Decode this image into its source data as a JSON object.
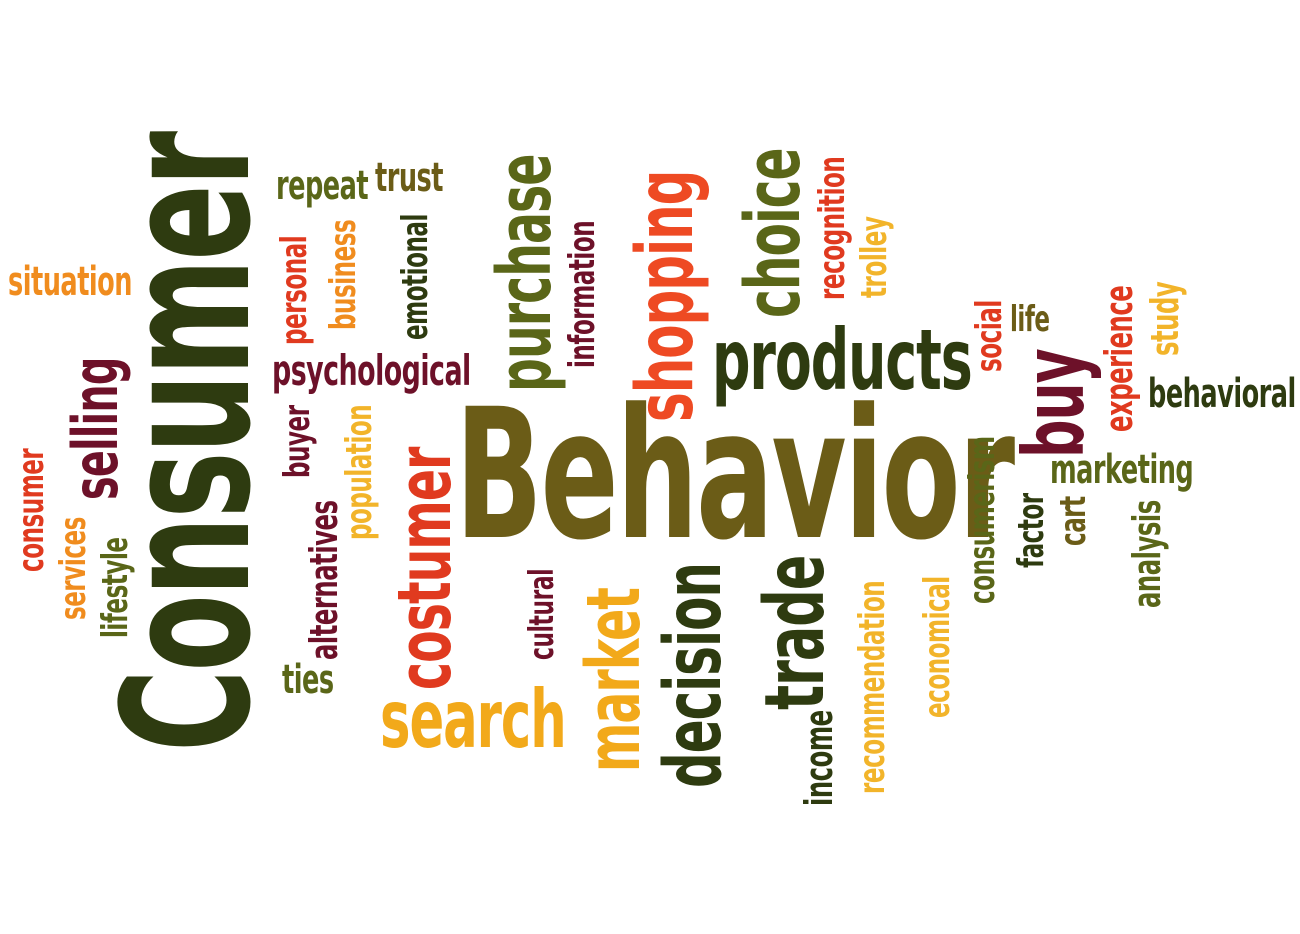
{
  "colors": {
    "dark_green": "#2e3b10",
    "olive": "#5a6618",
    "brown_olive": "#6b5c17",
    "maroon": "#6d1129",
    "red": "#e03a1f",
    "red_orange": "#ee4a23",
    "orange": "#f08c1e",
    "amber": "#f2a91a",
    "yellow": "#f2b42a"
  },
  "words": {
    "consumer_big": "Consumer",
    "behavior": "Behavior",
    "purchase": "purchase",
    "shopping": "shopping",
    "choice": "choice",
    "products": "products",
    "selling": "selling",
    "costumer": "costumer",
    "search": "search",
    "market": "market",
    "decision": "decision",
    "trade": "trade",
    "buy": "buy",
    "situation": "situation",
    "repeat": "repeat",
    "trust": "trust",
    "personal": "personal",
    "business": "business",
    "emotional": "emotional",
    "information": "information",
    "recognition": "recognition",
    "trolley": "trolley",
    "social": "social",
    "life": "life",
    "experience": "experience",
    "study": "study",
    "behavioral": "behavioral",
    "psychological": "psychological",
    "buyer": "buyer",
    "population": "population",
    "alternatives": "alternatives",
    "ties": "ties",
    "consumer_small": "consumer",
    "services": "services",
    "lifestyle": "lifestyle",
    "cultural": "cultural",
    "income": "income",
    "recommendation": "recommendation",
    "economical": "economical",
    "consumerism": "consumerism",
    "factor": "factor",
    "cart": "cart",
    "marketing": "marketing",
    "analysis": "analysis"
  }
}
